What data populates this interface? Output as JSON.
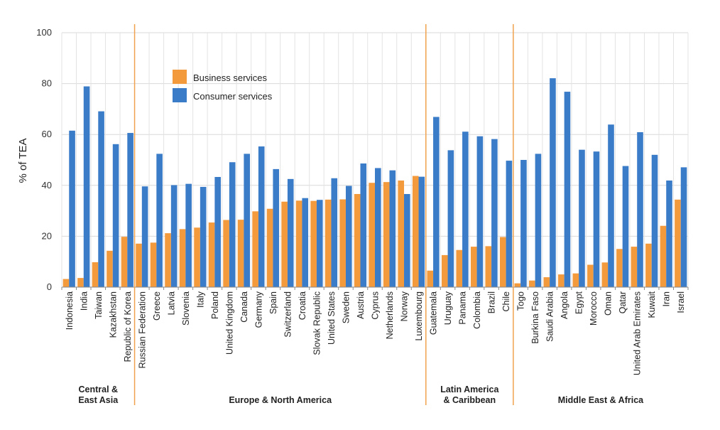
{
  "chart_data": {
    "type": "bar",
    "title": "",
    "xlabel": "",
    "ylabel": "% of TEA",
    "ylim": [
      0,
      100
    ],
    "yticks": [
      0,
      20,
      40,
      60,
      80,
      100
    ],
    "grid": true,
    "legend_position": "top-left",
    "categories": [
      "Indonesia",
      "India",
      "Taiwan",
      "Kazakhstan",
      "Republic of Korea",
      "Russian Federation",
      "Greece",
      "Latvia",
      "Slovenia",
      "Italy",
      "Poland",
      "United Kingdom",
      "Canada",
      "Germany",
      "Spain",
      "Switzerland",
      "Croatia",
      "Slovak Republic",
      "United States",
      "Sweden",
      "Austria",
      "Cyprus",
      "Netherlands",
      "Norway",
      "Luxembourg",
      "Guatemala",
      "Uruguay",
      "Panama",
      "Colombia",
      "Brazil",
      "Chile",
      "Togo",
      "Burkina Faso",
      "Saudi Arabia",
      "Angola",
      "Egypt",
      "Morocco",
      "Oman",
      "Qatar",
      "United Arab Emirates",
      "Kuwait",
      "Iran",
      "Israel"
    ],
    "series": [
      {
        "name": "Business services",
        "color": "#f39a3d",
        "values": [
          3.2,
          3.6,
          9.8,
          14.3,
          19.8,
          17.1,
          17.5,
          21.2,
          22.8,
          23.4,
          25.4,
          26.4,
          26.5,
          29.8,
          30.8,
          33.6,
          34.0,
          33.9,
          34.4,
          34.5,
          36.6,
          41.0,
          41.3,
          41.9,
          43.7,
          6.5,
          12.6,
          14.6,
          15.9,
          16.1,
          19.7,
          1.5,
          2.6,
          3.9,
          5.0,
          5.4,
          8.8,
          9.7,
          15.0,
          15.9,
          17.1,
          24.1,
          34.4
        ]
      },
      {
        "name": "Consumer services",
        "color": "#3b7cc9",
        "values": [
          61.5,
          78.9,
          69.1,
          56.2,
          60.6,
          39.6,
          52.4,
          40.1,
          40.6,
          39.4,
          43.3,
          49.1,
          52.4,
          55.3,
          46.4,
          42.5,
          35.0,
          34.3,
          42.8,
          39.8,
          48.6,
          46.8,
          45.9,
          36.6,
          43.4,
          66.9,
          53.8,
          61.1,
          59.3,
          58.2,
          49.7,
          50.0,
          52.4,
          82.1,
          76.8,
          54.0,
          53.3,
          63.9,
          47.6,
          60.9,
          52.0,
          41.9,
          47.1
        ]
      }
    ],
    "regions": [
      {
        "label_lines": [
          "Central &",
          "East Asia"
        ],
        "start": 0,
        "end": 4
      },
      {
        "label_lines": [
          "Europe & North America"
        ],
        "start": 5,
        "end": 24
      },
      {
        "label_lines": [
          "Latin America",
          "& Caribbean"
        ],
        "start": 25,
        "end": 30
      },
      {
        "label_lines": [
          "Middle East & Africa"
        ],
        "start": 31,
        "end": 42
      }
    ]
  }
}
